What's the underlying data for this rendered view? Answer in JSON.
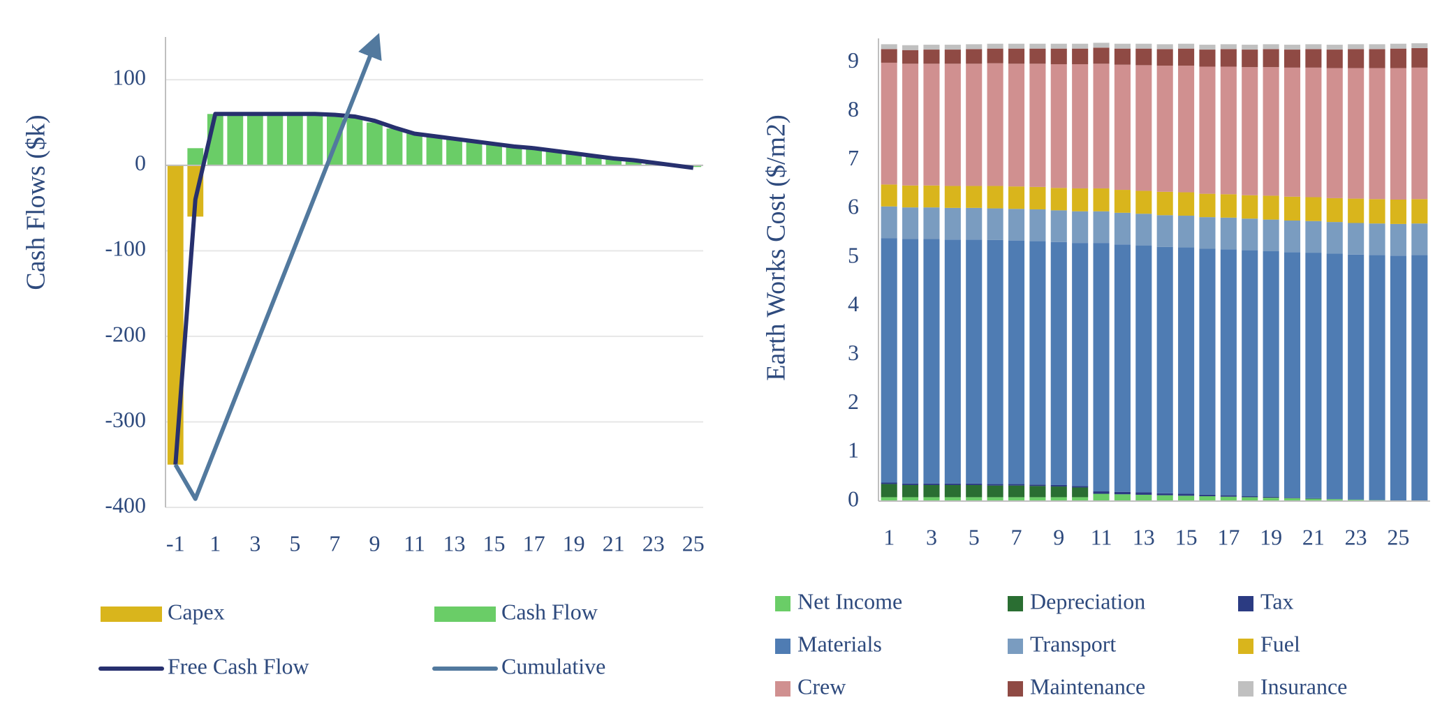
{
  "chart_data": [
    {
      "type": "combo",
      "y_label": "Cash Flows ($k)",
      "categories": [
        -1,
        null,
        1,
        null,
        3,
        null,
        5,
        null,
        7,
        null,
        9,
        null,
        11,
        null,
        13,
        null,
        15,
        null,
        17,
        null,
        19,
        null,
        21,
        null,
        23,
        null,
        25
      ],
      "ylim": [
        -400,
        150
      ],
      "yticks": [
        -400,
        -300,
        -200,
        -100,
        0,
        100
      ],
      "grid": true,
      "series": [
        {
          "name": "Capex",
          "type": "bar",
          "color": "#d9b51c",
          "values": [
            -350,
            -60,
            null,
            null,
            null,
            null,
            null,
            null,
            null,
            null,
            null,
            null,
            null,
            null,
            null,
            null,
            null,
            null,
            null,
            null,
            null,
            null,
            null,
            null,
            null,
            null,
            null
          ]
        },
        {
          "name": "Cash Flow",
          "type": "bar",
          "color": "#6acd67",
          "values": [
            null,
            20,
            60,
            60,
            60,
            60,
            60,
            60,
            58,
            55,
            50,
            43,
            37,
            34,
            31,
            28,
            25,
            22,
            20,
            17,
            14,
            11,
            8,
            6,
            3,
            1,
            -2
          ]
        },
        {
          "name": "Free Cash Flow",
          "type": "line",
          "color": "#27306e",
          "values": [
            -350,
            -40,
            60,
            60,
            60,
            60,
            60,
            60,
            59,
            57,
            52,
            44,
            37,
            34,
            31,
            28,
            25,
            22,
            20,
            17,
            14,
            11,
            8,
            6,
            3,
            0,
            -3
          ]
        },
        {
          "name": "Cumulative",
          "type": "line",
          "color": "#52799e",
          "marker_end": "arrow",
          "values": [
            -350,
            -390,
            -331,
            -272,
            -213,
            -154,
            -95,
            -36,
            23,
            82,
            141,
            null,
            null,
            null,
            null,
            null,
            null,
            null,
            null,
            null,
            null,
            null,
            null,
            null,
            null,
            null,
            null
          ]
        }
      ]
    },
    {
      "type": "stacked_bar",
      "y_label": "Earth Works Cost ($/m2)",
      "categories": [
        1,
        null,
        3,
        null,
        5,
        null,
        7,
        null,
        9,
        null,
        11,
        null,
        13,
        null,
        15,
        null,
        17,
        null,
        19,
        null,
        21,
        null,
        23,
        null,
        25,
        null
      ],
      "ylim": [
        0,
        9.5
      ],
      "yticks": [
        0,
        1,
        2,
        3,
        4,
        5,
        6,
        7,
        8,
        9
      ],
      "grid": false,
      "series": [
        {
          "name": "Net Income",
          "color": "#6acd67",
          "values": [
            0.08,
            0.08,
            0.08,
            0.08,
            0.08,
            0.08,
            0.08,
            0.08,
            0.08,
            0.08,
            0.15,
            0.14,
            0.13,
            0.12,
            0.11,
            0.1,
            0.09,
            0.08,
            0.07,
            0.06,
            0.05,
            0.04,
            0.03,
            0.02,
            0.01,
            0
          ]
        },
        {
          "name": "Depreciation",
          "color": "#2a6e32",
          "values": [
            0.27,
            0.25,
            0.25,
            0.25,
            0.25,
            0.24,
            0.24,
            0.23,
            0.22,
            0.2,
            0,
            0,
            0,
            0,
            0,
            0,
            0,
            0,
            0,
            0,
            0,
            0,
            0,
            0,
            0,
            0
          ]
        },
        {
          "name": "Tax",
          "color": "#2b3b82",
          "values": [
            0.03,
            0.03,
            0.03,
            0.03,
            0.03,
            0.03,
            0.03,
            0.03,
            0.03,
            0.03,
            0.05,
            0.05,
            0.05,
            0.04,
            0.04,
            0.03,
            0.03,
            0.02,
            0.02,
            0.01,
            0.01,
            0,
            0,
            0,
            0,
            0
          ]
        },
        {
          "name": "Materials",
          "color": "#4f7cb3",
          "values": [
            5.02,
            5.02,
            5.02,
            5.01,
            5.01,
            5.01,
            5.0,
            5.0,
            4.99,
            4.99,
            5.1,
            5.08,
            5.07,
            5.06,
            5.06,
            5.05,
            5.05,
            5.05,
            5.04,
            5.04,
            5.04,
            5.04,
            5.03,
            5.03,
            5.03,
            5.05
          ]
        },
        {
          "name": "Transport",
          "color": "#7a9cc0",
          "values": [
            0.65,
            0.65,
            0.65,
            0.65,
            0.65,
            0.65,
            0.65,
            0.65,
            0.65,
            0.65,
            0.65,
            0.65,
            0.65,
            0.65,
            0.65,
            0.65,
            0.65,
            0.65,
            0.65,
            0.65,
            0.65,
            0.65,
            0.65,
            0.65,
            0.65,
            0.65
          ]
        },
        {
          "name": "Fuel",
          "color": "#d9b51c",
          "values": [
            0.45,
            0.45,
            0.45,
            0.45,
            0.45,
            0.46,
            0.46,
            0.46,
            0.46,
            0.47,
            0.47,
            0.47,
            0.47,
            0.48,
            0.48,
            0.48,
            0.48,
            0.48,
            0.49,
            0.49,
            0.49,
            0.49,
            0.5,
            0.5,
            0.5,
            0.5
          ]
        },
        {
          "name": "Crew",
          "color": "#d09090",
          "values": [
            2.5,
            2.5,
            2.5,
            2.51,
            2.51,
            2.52,
            2.52,
            2.53,
            2.54,
            2.55,
            2.56,
            2.57,
            2.58,
            2.59,
            2.6,
            2.61,
            2.62,
            2.63,
            2.64,
            2.65,
            2.66,
            2.67,
            2.68,
            2.69,
            2.7,
            2.7
          ]
        },
        {
          "name": "Maintenance",
          "color": "#8f4a44",
          "values": [
            0.28,
            0.28,
            0.29,
            0.29,
            0.3,
            0.3,
            0.31,
            0.31,
            0.32,
            0.32,
            0.33,
            0.33,
            0.34,
            0.34,
            0.35,
            0.35,
            0.36,
            0.36,
            0.37,
            0.37,
            0.38,
            0.38,
            0.39,
            0.39,
            0.4,
            0.4
          ]
        },
        {
          "name": "Insurance",
          "color": "#c0c0c0",
          "values": [
            0.1,
            0.1,
            0.1,
            0.1,
            0.1,
            0.1,
            0.1,
            0.1,
            0.1,
            0.1,
            0.1,
            0.1,
            0.1,
            0.1,
            0.1,
            0.1,
            0.1,
            0.1,
            0.1,
            0.1,
            0.1,
            0.1,
            0.1,
            0.1,
            0.1,
            0.1
          ]
        }
      ]
    }
  ]
}
